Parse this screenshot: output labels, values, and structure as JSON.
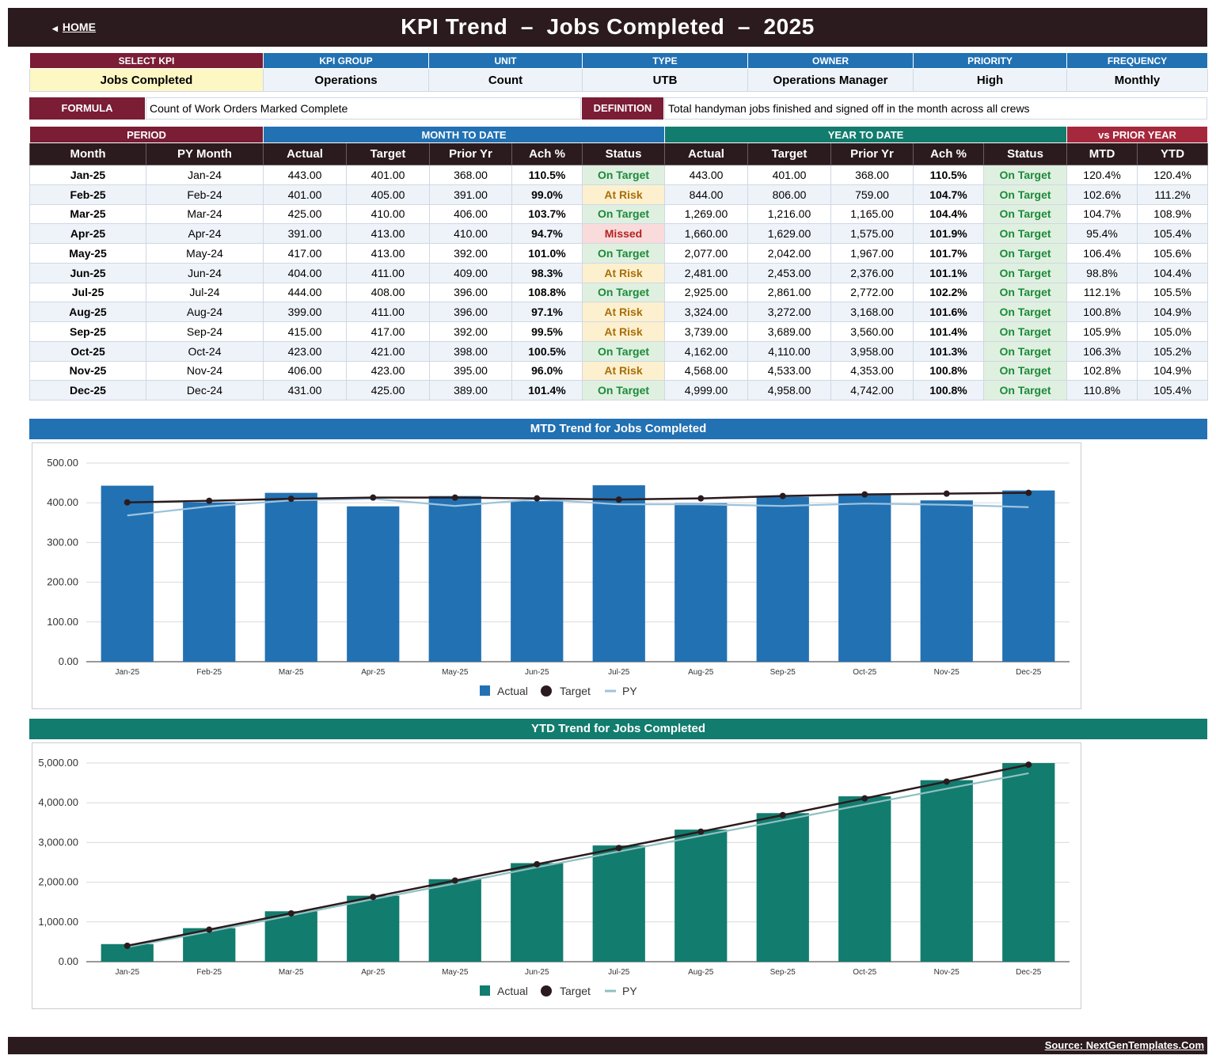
{
  "header": {
    "home_label": "HOME",
    "title": "KPI Trend  –  Jobs Completed  –  2025",
    "bg": "#2b1b1e"
  },
  "kpi": {
    "headers": [
      "SELECT KPI",
      "KPI GROUP",
      "UNIT",
      "TYPE",
      "OWNER",
      "PRIORITY",
      "FREQUENCY"
    ],
    "values": [
      "Jobs Completed",
      "Operations",
      "Count",
      "UTB",
      "Operations Manager",
      "High",
      "Monthly"
    ]
  },
  "formula": {
    "label": "FORMULA",
    "text": "Count of Work Orders Marked Complete"
  },
  "definition": {
    "label": "DEFINITION",
    "text": "Total handyman jobs finished and signed off in the month across all crews"
  },
  "table": {
    "groups": [
      "PERIOD",
      "MONTH TO DATE",
      "YEAR TO DATE",
      "vs PRIOR YEAR"
    ],
    "columns": [
      "Month",
      "PY Month",
      "Actual",
      "Target",
      "Prior Yr",
      "Ach %",
      "Status",
      "Actual",
      "Target",
      "Prior Yr",
      "Ach %",
      "Status",
      "MTD",
      "YTD"
    ],
    "rows": [
      [
        "Jan-25",
        "Jan-24",
        "443.00",
        "401.00",
        "368.00",
        "110.5%",
        "On Target",
        "443.00",
        "401.00",
        "368.00",
        "110.5%",
        "On Target",
        "120.4%",
        "120.4%"
      ],
      [
        "Feb-25",
        "Feb-24",
        "401.00",
        "405.00",
        "391.00",
        "99.0%",
        "At Risk",
        "844.00",
        "806.00",
        "759.00",
        "104.7%",
        "On Target",
        "102.6%",
        "111.2%"
      ],
      [
        "Mar-25",
        "Mar-24",
        "425.00",
        "410.00",
        "406.00",
        "103.7%",
        "On Target",
        "1,269.00",
        "1,216.00",
        "1,165.00",
        "104.4%",
        "On Target",
        "104.7%",
        "108.9%"
      ],
      [
        "Apr-25",
        "Apr-24",
        "391.00",
        "413.00",
        "410.00",
        "94.7%",
        "Missed",
        "1,660.00",
        "1,629.00",
        "1,575.00",
        "101.9%",
        "On Target",
        "95.4%",
        "105.4%"
      ],
      [
        "May-25",
        "May-24",
        "417.00",
        "413.00",
        "392.00",
        "101.0%",
        "On Target",
        "2,077.00",
        "2,042.00",
        "1,967.00",
        "101.7%",
        "On Target",
        "106.4%",
        "105.6%"
      ],
      [
        "Jun-25",
        "Jun-24",
        "404.00",
        "411.00",
        "409.00",
        "98.3%",
        "At Risk",
        "2,481.00",
        "2,453.00",
        "2,376.00",
        "101.1%",
        "On Target",
        "98.8%",
        "104.4%"
      ],
      [
        "Jul-25",
        "Jul-24",
        "444.00",
        "408.00",
        "396.00",
        "108.8%",
        "On Target",
        "2,925.00",
        "2,861.00",
        "2,772.00",
        "102.2%",
        "On Target",
        "112.1%",
        "105.5%"
      ],
      [
        "Aug-25",
        "Aug-24",
        "399.00",
        "411.00",
        "396.00",
        "97.1%",
        "At Risk",
        "3,324.00",
        "3,272.00",
        "3,168.00",
        "101.6%",
        "On Target",
        "100.8%",
        "104.9%"
      ],
      [
        "Sep-25",
        "Sep-24",
        "415.00",
        "417.00",
        "392.00",
        "99.5%",
        "At Risk",
        "3,739.00",
        "3,689.00",
        "3,560.00",
        "101.4%",
        "On Target",
        "105.9%",
        "105.0%"
      ],
      [
        "Oct-25",
        "Oct-24",
        "423.00",
        "421.00",
        "398.00",
        "100.5%",
        "On Target",
        "4,162.00",
        "4,110.00",
        "3,958.00",
        "101.3%",
        "On Target",
        "106.3%",
        "105.2%"
      ],
      [
        "Nov-25",
        "Nov-24",
        "406.00",
        "423.00",
        "395.00",
        "96.0%",
        "At Risk",
        "4,568.00",
        "4,533.00",
        "4,353.00",
        "100.8%",
        "On Target",
        "102.8%",
        "104.9%"
      ],
      [
        "Dec-25",
        "Dec-24",
        "431.00",
        "425.00",
        "389.00",
        "101.4%",
        "On Target",
        "4,999.00",
        "4,958.00",
        "4,742.00",
        "100.8%",
        "On Target",
        "110.8%",
        "105.4%"
      ]
    ]
  },
  "colors": {
    "maroon": "#7a1d35",
    "blue": "#2271b3",
    "teal": "#127c6e",
    "red": "#a6283c",
    "dark": "#2b1b1e",
    "py_line": "#9cc3dd",
    "py_line_ytd": "#8fc0c0"
  },
  "mtd_title": "MTD Trend for Jobs Completed",
  "ytd_title": "YTD Trend for Jobs Completed",
  "chart_data": [
    {
      "type": "bar",
      "title": "MTD Trend for Jobs Completed",
      "categories": [
        "Jan-25",
        "Feb-25",
        "Mar-25",
        "Apr-25",
        "May-25",
        "Jun-25",
        "Jul-25",
        "Aug-25",
        "Sep-25",
        "Oct-25",
        "Nov-25",
        "Dec-25"
      ],
      "series": [
        {
          "name": "Actual",
          "kind": "bar",
          "values": [
            443,
            401,
            425,
            391,
            417,
            404,
            444,
            399,
            415,
            423,
            406,
            431
          ]
        },
        {
          "name": "Target",
          "kind": "line-marker",
          "values": [
            401,
            405,
            410,
            413,
            413,
            411,
            408,
            411,
            417,
            421,
            423,
            425
          ]
        },
        {
          "name": "PY",
          "kind": "line",
          "values": [
            368,
            391,
            406,
            410,
            392,
            409,
            396,
            396,
            392,
            398,
            395,
            389
          ]
        }
      ],
      "ylim": [
        0,
        500
      ],
      "yticks": [
        "0.00",
        "100.00",
        "200.00",
        "300.00",
        "400.00",
        "500.00"
      ],
      "legend": "bottom"
    },
    {
      "type": "bar",
      "title": "YTD Trend for Jobs Completed",
      "categories": [
        "Jan-25",
        "Feb-25",
        "Mar-25",
        "Apr-25",
        "May-25",
        "Jun-25",
        "Jul-25",
        "Aug-25",
        "Sep-25",
        "Oct-25",
        "Nov-25",
        "Dec-25"
      ],
      "series": [
        {
          "name": "Actual",
          "kind": "bar",
          "values": [
            443,
            844,
            1269,
            1660,
            2077,
            2481,
            2925,
            3324,
            3739,
            4162,
            4568,
            4999
          ]
        },
        {
          "name": "Target",
          "kind": "line-marker",
          "values": [
            401,
            806,
            1216,
            1629,
            2042,
            2453,
            2861,
            3272,
            3689,
            4110,
            4533,
            4958
          ]
        },
        {
          "name": "PY",
          "kind": "line",
          "values": [
            368,
            759,
            1165,
            1575,
            1967,
            2376,
            2772,
            3168,
            3560,
            3958,
            4353,
            4742
          ]
        }
      ],
      "ylim": [
        0,
        5000
      ],
      "yticks": [
        "0.00",
        "1,000.00",
        "2,000.00",
        "3,000.00",
        "4,000.00",
        "5,000.00"
      ],
      "legend": "bottom"
    }
  ],
  "footer": {
    "source": "Source: NextGenTemplates.Com"
  }
}
